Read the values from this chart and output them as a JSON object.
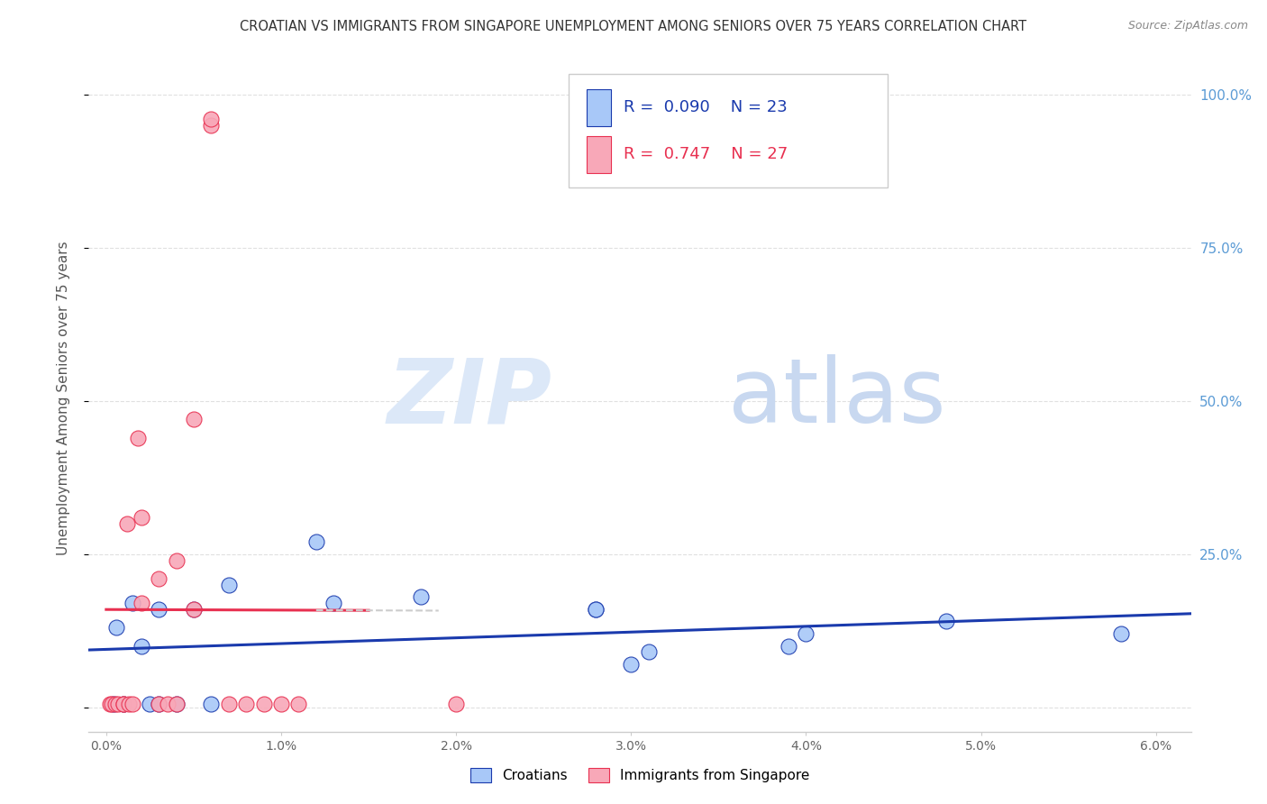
{
  "title": "CROATIAN VS IMMIGRANTS FROM SINGAPORE UNEMPLOYMENT AMONG SENIORS OVER 75 YEARS CORRELATION CHART",
  "source": "Source: ZipAtlas.com",
  "ylabel": "Unemployment Among Seniors over 75 years",
  "legend_croatians": "Croatians",
  "legend_singapore": "Immigrants from Singapore",
  "R_croatians": 0.09,
  "N_croatians": 23,
  "R_singapore": 0.747,
  "N_singapore": 27,
  "color_croatians": "#a8c8f8",
  "color_singapore": "#f8a8b8",
  "color_line_croatians": "#1a3aad",
  "color_line_singapore": "#e83050",
  "watermark_zip": "ZIP",
  "watermark_atlas": "atlas",
  "watermark_color": "#dce8f8",
  "croatians_x": [
    0.0004,
    0.0006,
    0.001,
    0.0015,
    0.002,
    0.0025,
    0.003,
    0.003,
    0.004,
    0.005,
    0.006,
    0.007,
    0.012,
    0.013,
    0.018,
    0.028,
    0.028,
    0.03,
    0.031,
    0.039,
    0.04,
    0.048,
    0.058
  ],
  "croatians_y": [
    0.005,
    0.13,
    0.005,
    0.17,
    0.1,
    0.005,
    0.005,
    0.16,
    0.005,
    0.16,
    0.005,
    0.2,
    0.27,
    0.17,
    0.18,
    0.16,
    0.16,
    0.07,
    0.09,
    0.1,
    0.12,
    0.14,
    0.12
  ],
  "singapore_x": [
    0.0002,
    0.0003,
    0.0005,
    0.0007,
    0.001,
    0.001,
    0.0012,
    0.0013,
    0.0015,
    0.0018,
    0.002,
    0.002,
    0.003,
    0.003,
    0.0035,
    0.004,
    0.004,
    0.005,
    0.005,
    0.006,
    0.006,
    0.007,
    0.008,
    0.009,
    0.01,
    0.011,
    0.02
  ],
  "singapore_y": [
    0.005,
    0.005,
    0.005,
    0.005,
    0.005,
    0.005,
    0.3,
    0.005,
    0.005,
    0.44,
    0.17,
    0.31,
    0.21,
    0.005,
    0.005,
    0.005,
    0.24,
    0.47,
    0.16,
    0.95,
    0.96,
    0.005,
    0.005,
    0.005,
    0.005,
    0.005,
    0.005
  ],
  "xlim": [
    -0.001,
    0.062
  ],
  "ylim": [
    -0.04,
    1.05
  ],
  "yticks": [
    0.0,
    0.25,
    0.5,
    0.75,
    1.0
  ],
  "xtick_positions": [
    0.0,
    0.01,
    0.02,
    0.03,
    0.04,
    0.05,
    0.06
  ],
  "xtick_labels": [
    "0.0%",
    "1.0%",
    "2.0%",
    "3.0%",
    "4.0%",
    "5.0%",
    "6.0%"
  ],
  "ytick_labels_right": [
    "",
    "25.0%",
    "50.0%",
    "75.0%",
    "100.0%"
  ]
}
